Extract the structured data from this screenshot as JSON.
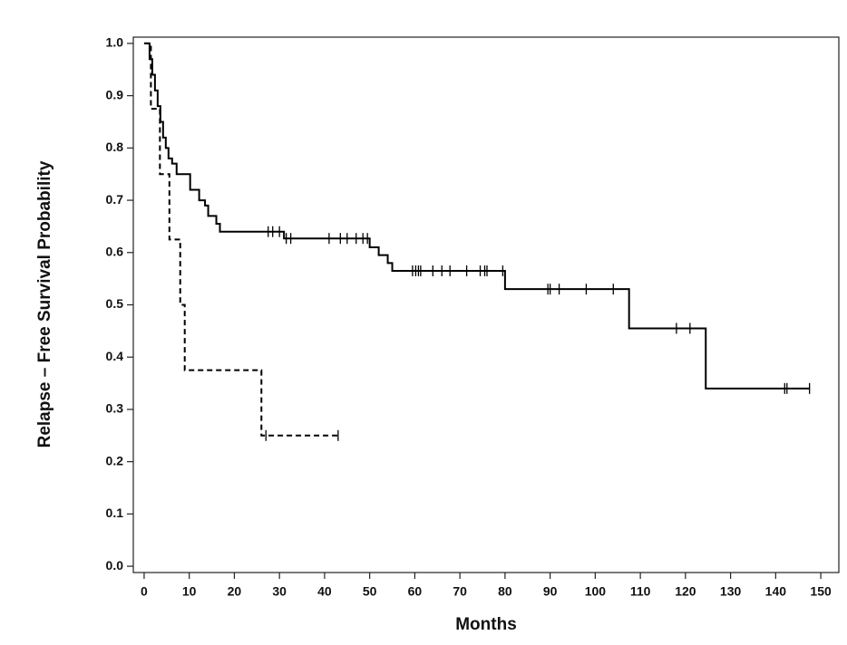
{
  "chart_data": {
    "type": "step",
    "x_label": "Months",
    "y_label": "Relapse – Free Survival Probability",
    "xlim": [
      -2.4,
      154
    ],
    "ylim": [
      -0.012,
      1.012
    ],
    "xticks": [
      0,
      10,
      20,
      30,
      40,
      50,
      60,
      70,
      80,
      90,
      100,
      110,
      120,
      130,
      140,
      150
    ],
    "yticks": [
      {
        "value": 0,
        "label": "0.0"
      },
      0.1,
      0.2,
      0.3,
      0.4,
      0.5,
      0.6,
      0.7,
      0.8,
      0.9,
      {
        "value": 1,
        "label": "1.0"
      }
    ],
    "series": [
      {
        "color": "#000000",
        "dashed": false,
        "x": [
          0,
          1.2,
          1.8,
          2.4,
          3,
          3.6,
          4.2,
          4.8,
          5.4,
          6.2,
          7.2,
          10.2,
          12.2,
          13.5,
          14.2,
          16,
          16.8,
          31,
          50,
          52,
          54,
          55,
          80,
          107.5,
          124.5,
          147.5
        ],
        "values": [
          1.0,
          0.97,
          0.94,
          0.91,
          0.88,
          0.85,
          0.82,
          0.8,
          0.78,
          0.77,
          0.75,
          0.72,
          0.7,
          0.69,
          0.67,
          0.655,
          0.64,
          0.627,
          0.61,
          0.595,
          0.58,
          0.565,
          0.53,
          0.455,
          0.34,
          0.34
        ],
        "censor_x": [
          27.5,
          28.5,
          30,
          31.5,
          32.5,
          41,
          43.5,
          45,
          47,
          48.5,
          49.5,
          59.5,
          60.2,
          60.8,
          61.3,
          64,
          66,
          67.8,
          71.5,
          74.5,
          75.5,
          76,
          79.5,
          89.5,
          90,
          92,
          98,
          104,
          118,
          121,
          142,
          142.5,
          147.5
        ],
        "censor_y": [
          0.64,
          0.64,
          0.64,
          0.627,
          0.627,
          0.627,
          0.627,
          0.627,
          0.627,
          0.627,
          0.627,
          0.565,
          0.565,
          0.565,
          0.565,
          0.565,
          0.565,
          0.565,
          0.565,
          0.565,
          0.565,
          0.565,
          0.565,
          0.53,
          0.53,
          0.53,
          0.53,
          0.53,
          0.455,
          0.455,
          0.34,
          0.34,
          0.34
        ]
      },
      {
        "color": "#000000",
        "dashed": true,
        "x": [
          0,
          1.5,
          3.5,
          5.6,
          8,
          9,
          26,
          43
        ],
        "values": [
          1.0,
          0.875,
          0.75,
          0.625,
          0.5,
          0.375,
          0.25,
          0.25
        ],
        "censor_x": [
          27,
          43
        ],
        "censor_y": [
          0.25,
          0.25
        ]
      }
    ]
  }
}
